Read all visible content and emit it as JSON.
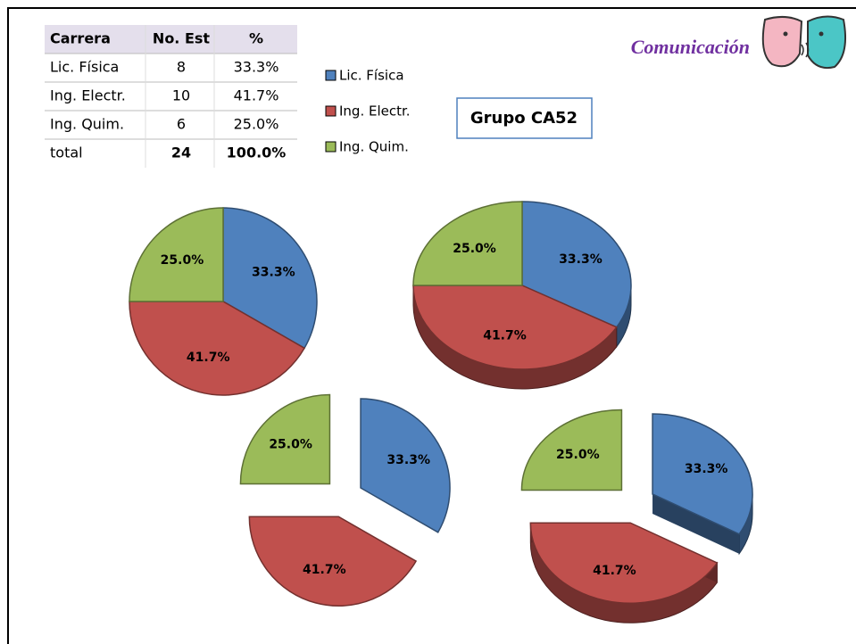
{
  "header": {
    "title": "Comunicación",
    "group": "Grupo CA52"
  },
  "table": {
    "columns": [
      "Carrera",
      "No. Est",
      "%"
    ],
    "rows": [
      [
        "Lic. Física",
        8,
        "33.3%"
      ],
      [
        "Ing. Electr.",
        10,
        "41.7%"
      ],
      [
        "Ing. Quim.",
        6,
        "25.0%"
      ],
      [
        "total",
        24,
        "100.0%"
      ]
    ]
  },
  "chart_data": {
    "type": "pie",
    "categories": [
      "Lic. Física",
      "Ing. Electr.",
      "Ing. Quim."
    ],
    "colors": [
      "#4f81bd",
      "#c0504d",
      "#9bbb59"
    ],
    "values": [
      33.3,
      41.7,
      25.0
    ],
    "value_labels": [
      "33.3%",
      "41.7%",
      "25.0%"
    ],
    "variants": [
      {
        "three_d": false,
        "exploded": false
      },
      {
        "three_d": true,
        "exploded": false
      },
      {
        "three_d": false,
        "exploded": true
      },
      {
        "three_d": true,
        "exploded": true
      }
    ]
  }
}
